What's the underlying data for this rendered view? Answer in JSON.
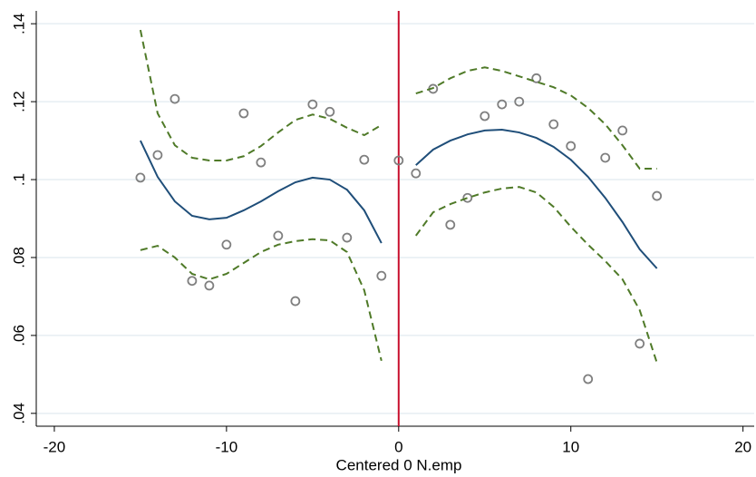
{
  "chart_data": {
    "type": "scatter",
    "x_label": "Centered 0 N.emp",
    "xlim": [
      -21.05,
      20.65
    ],
    "ylim": [
      0.0367,
      0.1433
    ],
    "xticks": [
      -20,
      -10,
      0,
      10,
      20
    ],
    "yticks": [
      {
        "value": 0.04,
        "label": ".04"
      },
      {
        "value": 0.06,
        "label": ".06"
      },
      {
        "value": 0.08,
        "label": ".08"
      },
      {
        "value": 0.1,
        "label": ".1"
      },
      {
        "value": 0.12,
        "label": ".12"
      },
      {
        "value": 0.14,
        "label": ".14"
      }
    ],
    "grid": true,
    "grid_color": "#e6eef2",
    "cutoff": 0,
    "cutoff_color": "#c8102e",
    "series": [
      {
        "type": "scatter",
        "color": "#7f7f7f",
        "x": [
          -15,
          -14,
          -13,
          -12,
          -11,
          -10,
          -9,
          -8,
          -7,
          -6,
          -5,
          -4,
          -3,
          -2,
          -1,
          0,
          1,
          2,
          3,
          4,
          5,
          6,
          7,
          8,
          9,
          10,
          11,
          12,
          13,
          14,
          15
        ],
        "values": [
          0.1005,
          0.1063,
          0.1207,
          0.074,
          0.0728,
          0.0833,
          0.117,
          0.1044,
          0.0856,
          0.0688,
          0.1193,
          0.1174,
          0.0851,
          0.1051,
          0.0753,
          0.1049,
          0.1016,
          0.1233,
          0.0884,
          0.0953,
          0.1163,
          0.1193,
          0.12,
          0.126,
          0.1142,
          0.1086,
          0.0488,
          0.1056,
          0.1126,
          0.0579,
          0.0958
        ]
      },
      {
        "type": "line",
        "color": "#1f4e79",
        "dashed": false,
        "x": [
          -15,
          -14,
          -13,
          -12,
          -11,
          -10,
          -9,
          -8,
          -7,
          -6,
          -5,
          -4,
          -3,
          -2,
          -1
        ],
        "values": [
          0.11,
          0.1007,
          0.0944,
          0.0907,
          0.0898,
          0.0902,
          0.0921,
          0.0944,
          0.097,
          0.0993,
          0.1005,
          0.1,
          0.0974,
          0.0921,
          0.0837
        ]
      },
      {
        "type": "line",
        "color": "#4f7a28",
        "dashed": true,
        "x": [
          -15,
          -14,
          -13,
          -12,
          -11,
          -10,
          -9,
          -8,
          -7,
          -6,
          -5,
          -4,
          -3,
          -2,
          -1
        ],
        "values": [
          0.1384,
          0.117,
          0.1088,
          0.1056,
          0.1049,
          0.1049,
          0.106,
          0.1086,
          0.1121,
          0.1153,
          0.1167,
          0.1156,
          0.1133,
          0.1114,
          0.114
        ]
      },
      {
        "type": "line",
        "color": "#4f7a28",
        "dashed": true,
        "x": [
          -15,
          -14,
          -13,
          -12,
          -11,
          -10,
          -9,
          -8,
          -7,
          -6,
          -5,
          -4,
          -3,
          -2,
          -1
        ],
        "values": [
          0.0819,
          0.083,
          0.08,
          0.0758,
          0.0744,
          0.0758,
          0.0786,
          0.0814,
          0.0833,
          0.0842,
          0.0847,
          0.0844,
          0.0814,
          0.0716,
          0.0535
        ]
      },
      {
        "type": "line",
        "color": "#1f4e79",
        "dashed": false,
        "x": [
          1,
          2,
          3,
          4,
          5,
          6,
          7,
          8,
          9,
          10,
          11,
          12,
          13,
          14,
          15
        ],
        "values": [
          0.1037,
          0.1077,
          0.11,
          0.1116,
          0.1126,
          0.1128,
          0.1121,
          0.1107,
          0.1084,
          0.1051,
          0.1007,
          0.0953,
          0.0891,
          0.0821,
          0.0772
        ]
      },
      {
        "type": "line",
        "color": "#4f7a28",
        "dashed": true,
        "x": [
          1,
          2,
          3,
          4,
          5,
          6,
          7,
          8,
          9,
          10,
          11,
          12,
          13,
          14,
          15
        ],
        "values": [
          0.1221,
          0.1235,
          0.126,
          0.1279,
          0.1288,
          0.1279,
          0.1265,
          0.1251,
          0.1237,
          0.1216,
          0.1184,
          0.1142,
          0.1088,
          0.1028,
          0.1028
        ]
      },
      {
        "type": "line",
        "color": "#4f7a28",
        "dashed": true,
        "x": [
          1,
          2,
          3,
          4,
          5,
          6,
          7,
          8,
          9,
          10,
          11,
          12,
          13,
          14,
          15
        ],
        "values": [
          0.0856,
          0.0916,
          0.0937,
          0.0953,
          0.0967,
          0.0977,
          0.0981,
          0.0967,
          0.093,
          0.0879,
          0.0833,
          0.0791,
          0.0744,
          0.0665,
          0.053
        ]
      }
    ]
  }
}
